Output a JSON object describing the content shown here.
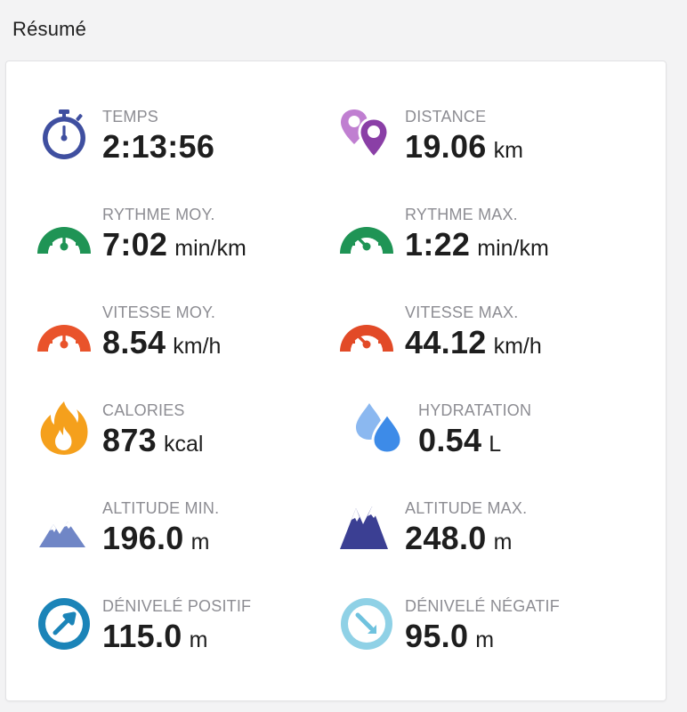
{
  "header": {
    "title": "Résumé"
  },
  "stats": [
    {
      "label": "TEMPS",
      "value": "2:13:56",
      "unit": "",
      "icon": "stopwatch-icon",
      "color": "#3f4fa0"
    },
    {
      "label": "DISTANCE",
      "value": "19.06",
      "unit": "km",
      "icon": "map-pins-icon",
      "color": "#8a3fa6"
    },
    {
      "label": "RYTHME MOY.",
      "value": "7:02",
      "unit": "min/km",
      "icon": "gauge-avg-icon",
      "color": "#1f9455"
    },
    {
      "label": "RYTHME MAX.",
      "value": "1:22",
      "unit": "min/km",
      "icon": "gauge-max-icon",
      "color": "#1f9455"
    },
    {
      "label": "VITESSE MOY.",
      "value": "8.54",
      "unit": "km/h",
      "icon": "speedometer-avg-icon",
      "color": "#e9532b"
    },
    {
      "label": "VITESSE MAX.",
      "value": "44.12",
      "unit": "km/h",
      "icon": "speedometer-max-icon",
      "color": "#e24a27"
    },
    {
      "label": "CALORIES",
      "value": "873",
      "unit": "kcal",
      "icon": "flame-icon",
      "color": "#f5a01c"
    },
    {
      "label": "HYDRATATION",
      "value": "0.54",
      "unit": "L",
      "icon": "water-drops-icon",
      "color": "#3d8be8"
    },
    {
      "label": "ALTITUDE MIN.",
      "value": "196.0",
      "unit": "m",
      "icon": "mountains-low-icon",
      "color": "#7086c6"
    },
    {
      "label": "ALTITUDE MAX.",
      "value": "248.0",
      "unit": "m",
      "icon": "mountains-high-icon",
      "color": "#3b3f93"
    },
    {
      "label": "DÉNIVELÉ POSITIF",
      "value": "115.0",
      "unit": "m",
      "icon": "ascent-arrow-icon",
      "color": "#1b84b8"
    },
    {
      "label": "DÉNIVELÉ NÉGATIF",
      "value": "95.0",
      "unit": "m",
      "icon": "descent-arrow-icon",
      "color": "#8fd1e6"
    }
  ]
}
